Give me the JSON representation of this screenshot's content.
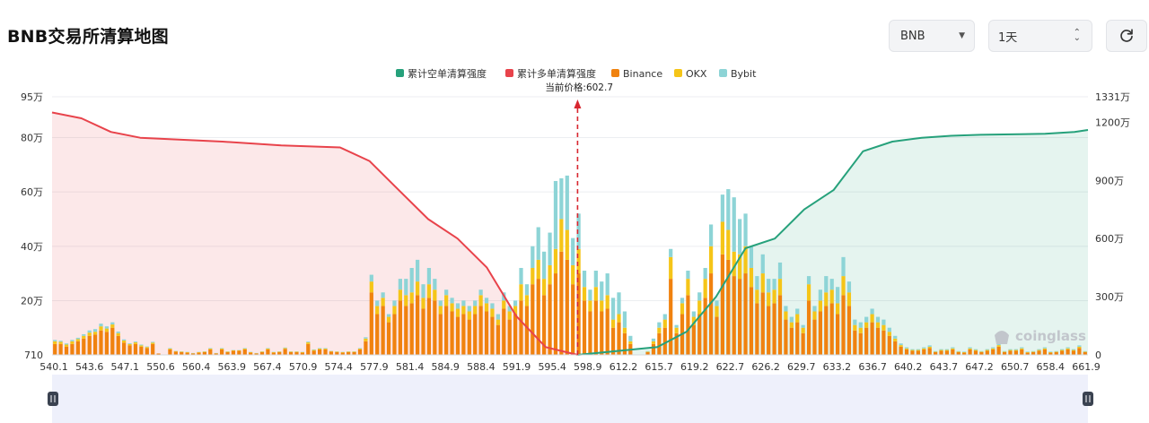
{
  "title": "BNB交易所清算地图",
  "controls": {
    "symbol": "BNB",
    "timeframe": "1天",
    "refresh_icon": "refresh-icon",
    "symbol_icon": "chevron-down-icon",
    "timeframe_icon": "up-down-arrows-icon"
  },
  "watermark": "coinglass",
  "colors": {
    "short": "#26a17b",
    "long": "#e8434b",
    "binance": "#f0820f",
    "okx": "#f5c518",
    "bybit": "#8dd4d6"
  },
  "chart_data": {
    "type": "bar",
    "current_price_label": "当前价格:602.7",
    "current_price": 602.7,
    "legend": [
      "累计空单清算强度",
      "累计多单清算强度",
      "Binance",
      "OKX",
      "Bybit"
    ],
    "x_ticks": [
      "540.1",
      "543.6",
      "547.1",
      "550.6",
      "560.4",
      "563.9",
      "567.4",
      "570.9",
      "574.4",
      "577.9",
      "581.4",
      "584.9",
      "588.4",
      "591.9",
      "595.4",
      "598.9",
      "612.2",
      "615.7",
      "619.2",
      "622.7",
      "626.2",
      "629.7",
      "633.2",
      "636.7",
      "640.2",
      "643.7",
      "647.2",
      "650.7",
      "658.4",
      "661.9"
    ],
    "y_left_ticks": [
      "710",
      "20万",
      "40万",
      "60万",
      "80万",
      "95万"
    ],
    "y_left_values": [
      710,
      200000,
      400000,
      600000,
      800000,
      950000
    ],
    "y_right_ticks": [
      "0",
      "300万",
      "600万",
      "900万",
      "1200万",
      "1331万"
    ],
    "y_right_values": [
      0,
      3000000,
      6000000,
      9000000,
      12000000,
      13310000
    ],
    "bar_series_units": "left axis",
    "bars": {
      "binance": [
        40000,
        40000,
        30000,
        40000,
        50000,
        60000,
        70000,
        75000,
        90000,
        85000,
        100000,
        70000,
        45000,
        35000,
        40000,
        30000,
        25000,
        40000,
        5000,
        0,
        20000,
        12000,
        10000,
        8000,
        5000,
        8000,
        10000,
        20000,
        5000,
        20000,
        10000,
        15000,
        15000,
        20000,
        8000,
        5000,
        10000,
        20000,
        8000,
        10000,
        22000,
        10000,
        10000,
        8000,
        40000,
        15000,
        20000,
        20000,
        12000,
        10000,
        8000,
        10000,
        10000,
        20000,
        50000,
        230000,
        150000,
        180000,
        120000,
        150000,
        200000,
        180000,
        190000,
        220000,
        170000,
        210000,
        200000,
        150000,
        180000,
        160000,
        140000,
        150000,
        130000,
        150000,
        180000,
        160000,
        140000,
        110000,
        170000,
        130000,
        150000,
        200000,
        180000,
        260000,
        280000,
        220000,
        260000,
        300000,
        380000,
        350000,
        260000,
        300000,
        200000,
        160000,
        200000,
        160000,
        170000,
        100000,
        120000,
        80000,
        40000,
        0,
        0,
        10000,
        40000,
        80000,
        100000,
        280000,
        80000,
        150000,
        220000,
        110000,
        150000,
        210000,
        300000,
        140000,
        370000,
        350000,
        290000,
        280000,
        300000,
        250000,
        190000,
        230000,
        180000,
        190000,
        220000,
        130000,
        100000,
        120000,
        80000,
        200000,
        130000,
        160000,
        180000,
        190000,
        150000,
        220000,
        180000,
        90000,
        80000,
        100000,
        120000,
        100000,
        90000,
        70000,
        50000,
        30000,
        20000,
        15000,
        15000,
        20000,
        25000,
        10000,
        15000,
        15000,
        20000,
        10000,
        8000,
        20000,
        15000,
        10000,
        15000,
        20000,
        30000,
        10000,
        15000,
        15000,
        20000,
        8000,
        10000,
        15000,
        20000,
        8000,
        10000,
        15000,
        20000,
        15000,
        25000,
        10000
      ],
      "okx": [
        10000,
        8000,
        8000,
        10000,
        8000,
        10000,
        12000,
        10000,
        15000,
        12000,
        12000,
        10000,
        8000,
        5000,
        6000,
        5000,
        4000,
        5000,
        0,
        0,
        3000,
        2000,
        2000,
        2000,
        1000,
        2000,
        2000,
        3000,
        1000,
        3000,
        2000,
        2000,
        2000,
        3000,
        2000,
        1000,
        2000,
        3000,
        2000,
        2000,
        3000,
        2000,
        2000,
        2000,
        6000,
        3000,
        3000,
        3000,
        2000,
        2000,
        2000,
        2000,
        2000,
        3000,
        10000,
        40000,
        30000,
        30000,
        20000,
        30000,
        40000,
        40000,
        40000,
        50000,
        40000,
        50000,
        40000,
        30000,
        40000,
        30000,
        30000,
        30000,
        30000,
        30000,
        40000,
        30000,
        30000,
        20000,
        30000,
        30000,
        30000,
        60000,
        40000,
        60000,
        70000,
        60000,
        70000,
        90000,
        120000,
        110000,
        70000,
        90000,
        50000,
        40000,
        50000,
        40000,
        50000,
        30000,
        30000,
        20000,
        10000,
        0,
        0,
        2000,
        10000,
        20000,
        30000,
        80000,
        20000,
        40000,
        60000,
        30000,
        50000,
        70000,
        100000,
        40000,
        120000,
        110000,
        90000,
        90000,
        100000,
        70000,
        50000,
        70000,
        50000,
        50000,
        60000,
        30000,
        20000,
        30000,
        20000,
        60000,
        30000,
        40000,
        50000,
        50000,
        40000,
        70000,
        50000,
        20000,
        20000,
        20000,
        30000,
        20000,
        20000,
        15000,
        10000,
        6000,
        4000,
        3000,
        3000,
        4000,
        5000,
        2000,
        3000,
        3000,
        4000,
        2000,
        2000,
        4000,
        3000,
        2000,
        3000,
        4000,
        6000,
        2000,
        3000,
        3000,
        4000,
        2000,
        2000,
        3000,
        4000,
        2000,
        2000,
        3000,
        4000,
        3000,
        5000,
        2000
      ],
      "bybit": [
        5000,
        4000,
        4000,
        5000,
        5000,
        6000,
        8000,
        10000,
        10000,
        8000,
        8000,
        6000,
        4000,
        3000,
        3000,
        3000,
        2000,
        3000,
        0,
        0,
        2000,
        1000,
        1000,
        1000,
        1000,
        1000,
        1000,
        2000,
        1000,
        2000,
        1000,
        1000,
        1000,
        2000,
        1000,
        1000,
        1000,
        2000,
        1000,
        1000,
        2000,
        1000,
        1000,
        1000,
        3000,
        2000,
        2000,
        2000,
        1000,
        1000,
        1000,
        1000,
        1000,
        2000,
        5000,
        25000,
        20000,
        20000,
        10000,
        20000,
        40000,
        60000,
        90000,
        80000,
        50000,
        60000,
        40000,
        20000,
        20000,
        20000,
        20000,
        20000,
        20000,
        20000,
        20000,
        20000,
        20000,
        20000,
        30000,
        20000,
        20000,
        60000,
        40000,
        80000,
        120000,
        100000,
        120000,
        250000,
        150000,
        200000,
        100000,
        130000,
        60000,
        40000,
        60000,
        70000,
        80000,
        80000,
        80000,
        60000,
        20000,
        0,
        0,
        2000,
        10000,
        20000,
        20000,
        30000,
        10000,
        20000,
        30000,
        20000,
        30000,
        40000,
        80000,
        20000,
        100000,
        150000,
        200000,
        130000,
        120000,
        80000,
        50000,
        70000,
        50000,
        40000,
        60000,
        20000,
        20000,
        20000,
        10000,
        30000,
        20000,
        40000,
        60000,
        40000,
        60000,
        70000,
        40000,
        20000,
        20000,
        20000,
        20000,
        20000,
        20000,
        15000,
        10000,
        6000,
        4000,
        3000,
        3000,
        4000,
        5000,
        2000,
        3000,
        3000,
        4000,
        2000,
        2000,
        4000,
        3000,
        2000,
        3000,
        4000,
        6000,
        2000,
        3000,
        3000,
        4000,
        2000,
        2000,
        3000,
        4000,
        2000,
        2000,
        3000,
        4000,
        3000,
        5000,
        2000
      ]
    },
    "cumulative_long": {
      "name": "累计多单清算强度",
      "price": [
        540.1,
        543.6,
        547.1,
        550.6,
        560.4,
        567.4,
        574.4,
        577.9,
        581.4,
        584.9,
        588.4,
        591.9,
        595.4,
        598.9,
        602.7
      ],
      "value": [
        12500000,
        12200000,
        11500000,
        11200000,
        11000000,
        10800000,
        10700000,
        10000000,
        8500000,
        7000000,
        6000000,
        4500000,
        2000000,
        400000,
        0
      ]
    },
    "cumulative_short": {
      "name": "累计空单清算强度",
      "price": [
        602.7,
        612.2,
        615.7,
        619.2,
        622.7,
        626.2,
        629.7,
        633.2,
        636.7,
        640.2,
        643.7,
        647.2,
        650.7,
        658.4,
        661.9,
        663.5
      ],
      "value": [
        0,
        400000,
        1200000,
        3000000,
        5500000,
        6000000,
        7500000,
        8500000,
        10500000,
        11000000,
        11200000,
        11300000,
        11350000,
        11400000,
        11500000,
        11600000
      ]
    }
  }
}
